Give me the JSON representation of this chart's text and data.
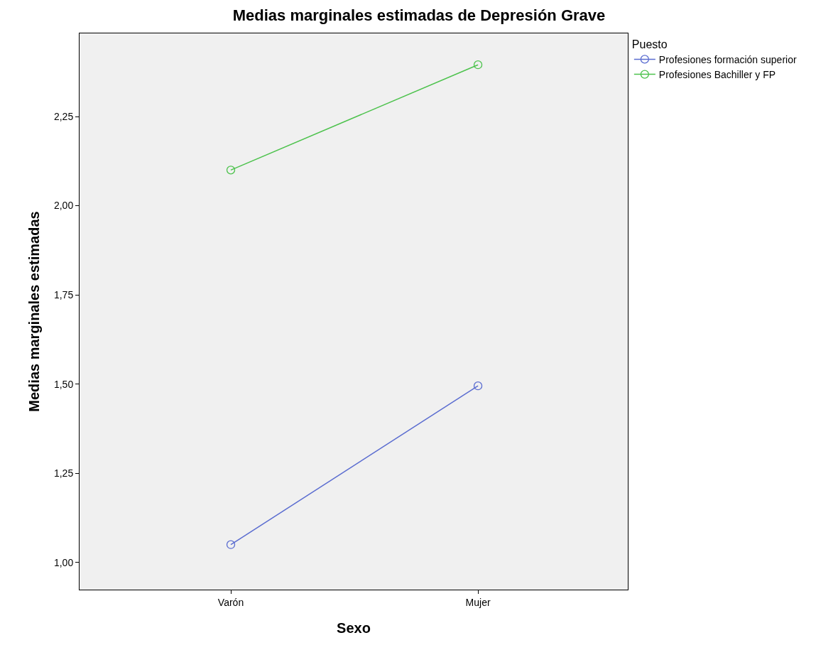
{
  "chart_data": {
    "type": "line",
    "title": "Medias marginales estimadas de Depresión Grave",
    "xlabel": "Sexo",
    "ylabel": "Medias marginales estimadas",
    "legend_title": "Puesto",
    "categories": [
      "Varón",
      "Mujer"
    ],
    "series": [
      {
        "name": "Profesiones formación superior",
        "color": "#5a6cd0",
        "values": [
          1.05,
          1.495
        ]
      },
      {
        "name": "Profesiones Bachiller y FP",
        "color": "#4cc24c",
        "values": [
          2.1,
          2.395
        ]
      }
    ],
    "ylim": [
      0.924,
      2.483
    ],
    "yticks": [
      {
        "value": 1,
        "label": "1,00"
      },
      {
        "value": 1.25,
        "label": "1,25"
      },
      {
        "value": 1.5,
        "label": "1,50"
      },
      {
        "value": 1.75,
        "label": "1,75"
      },
      {
        "value": 2,
        "label": "2,00"
      },
      {
        "value": 2.25,
        "label": "2,25"
      }
    ],
    "grid": false,
    "legend": "top right",
    "marker": "circle",
    "line_style": "solid"
  }
}
